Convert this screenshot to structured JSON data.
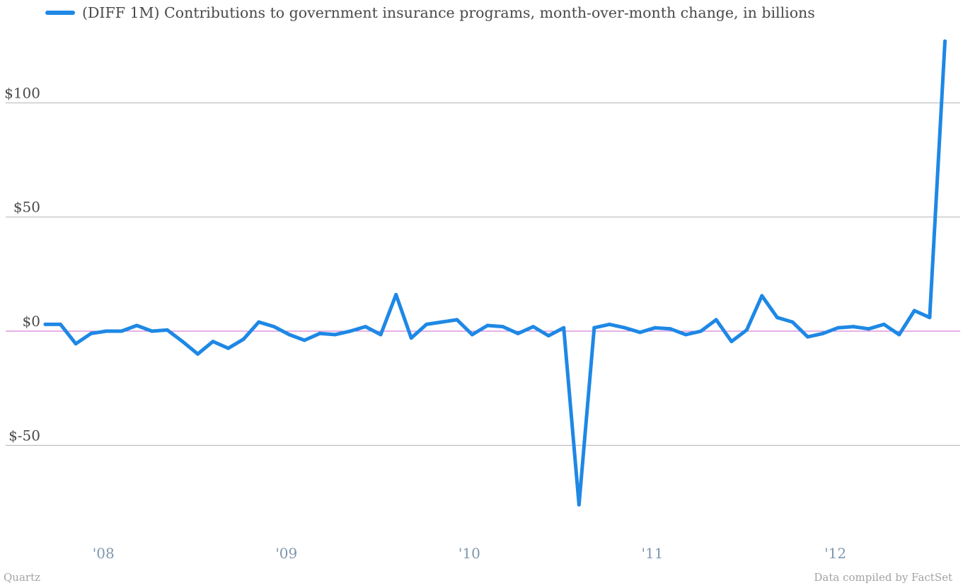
{
  "legend": {
    "label": "(DIFF 1M)  Contributions to government insurance programs, month-over-month change, in billions"
  },
  "footer": {
    "source_left": "Quartz",
    "source_right": "Data compiled by FactSet"
  },
  "colors": {
    "series": "#1e88e5",
    "zero_line": "#cc66cc",
    "grid": "#b3b3b3",
    "x_tick": "#7e97ad",
    "y_tick": "#4a4a4a"
  },
  "chart_data": {
    "type": "line",
    "title": "",
    "xlabel": "",
    "ylabel": "",
    "ylim": [
      -88,
      128
    ],
    "xlim": [
      "2007-09",
      "2012-09"
    ],
    "grid": true,
    "legend_position": "top-left",
    "y_ticks": [
      {
        "value": 100,
        "label": "$100"
      },
      {
        "value": 50,
        "label": "$50"
      },
      {
        "value": 0,
        "label": "$0"
      },
      {
        "value": -50,
        "label": "$-50"
      }
    ],
    "x_ticks": [
      {
        "date": "2008-01",
        "label": "'08"
      },
      {
        "date": "2009-01",
        "label": "'09"
      },
      {
        "date": "2010-01",
        "label": "'10"
      },
      {
        "date": "2011-01",
        "label": "'11"
      },
      {
        "date": "2012-01",
        "label": "'12"
      }
    ],
    "series": [
      {
        "name": "(DIFF 1M)  Contributions to government insurance programs, month-over-month change, in billions",
        "x": [
          "2007-09",
          "2007-10",
          "2007-11",
          "2007-12",
          "2008-01",
          "2008-02",
          "2008-03",
          "2008-04",
          "2008-05",
          "2008-06",
          "2008-07",
          "2008-08",
          "2008-09",
          "2008-10",
          "2008-11",
          "2008-12",
          "2009-01",
          "2009-02",
          "2009-03",
          "2009-04",
          "2009-05",
          "2009-06",
          "2009-07",
          "2009-08",
          "2009-09",
          "2009-10",
          "2009-11",
          "2009-12",
          "2010-01",
          "2010-02",
          "2010-03",
          "2010-04",
          "2010-05",
          "2010-06",
          "2010-07",
          "2010-08",
          "2010-09",
          "2010-10",
          "2010-11",
          "2010-12",
          "2011-01",
          "2011-02",
          "2011-03",
          "2011-04",
          "2011-05",
          "2011-06",
          "2011-07",
          "2011-08",
          "2011-09",
          "2011-10",
          "2011-11",
          "2011-12",
          "2012-01",
          "2012-02",
          "2012-03",
          "2012-04",
          "2012-05",
          "2012-06",
          "2012-07",
          "2012-08"
        ],
        "values": [
          3,
          3,
          -5.5,
          -1,
          0,
          0,
          2.5,
          0,
          0.5,
          -4.5,
          -10,
          -4.5,
          -7.5,
          -3.5,
          4,
          2,
          -1.5,
          -4,
          -1,
          -1.5,
          0,
          2,
          -1.5,
          16,
          -3,
          3,
          4,
          5,
          -1.5,
          2.5,
          2,
          -1,
          2,
          -2,
          1.5,
          -76,
          1.5,
          3,
          1.5,
          -0.5,
          1.5,
          1,
          -1.5,
          0,
          5,
          -4.5,
          0.5,
          15.5,
          6,
          4,
          -2.5,
          -1,
          1.5,
          2,
          1,
          3,
          -1.5,
          9,
          6,
          127
        ]
      }
    ]
  }
}
